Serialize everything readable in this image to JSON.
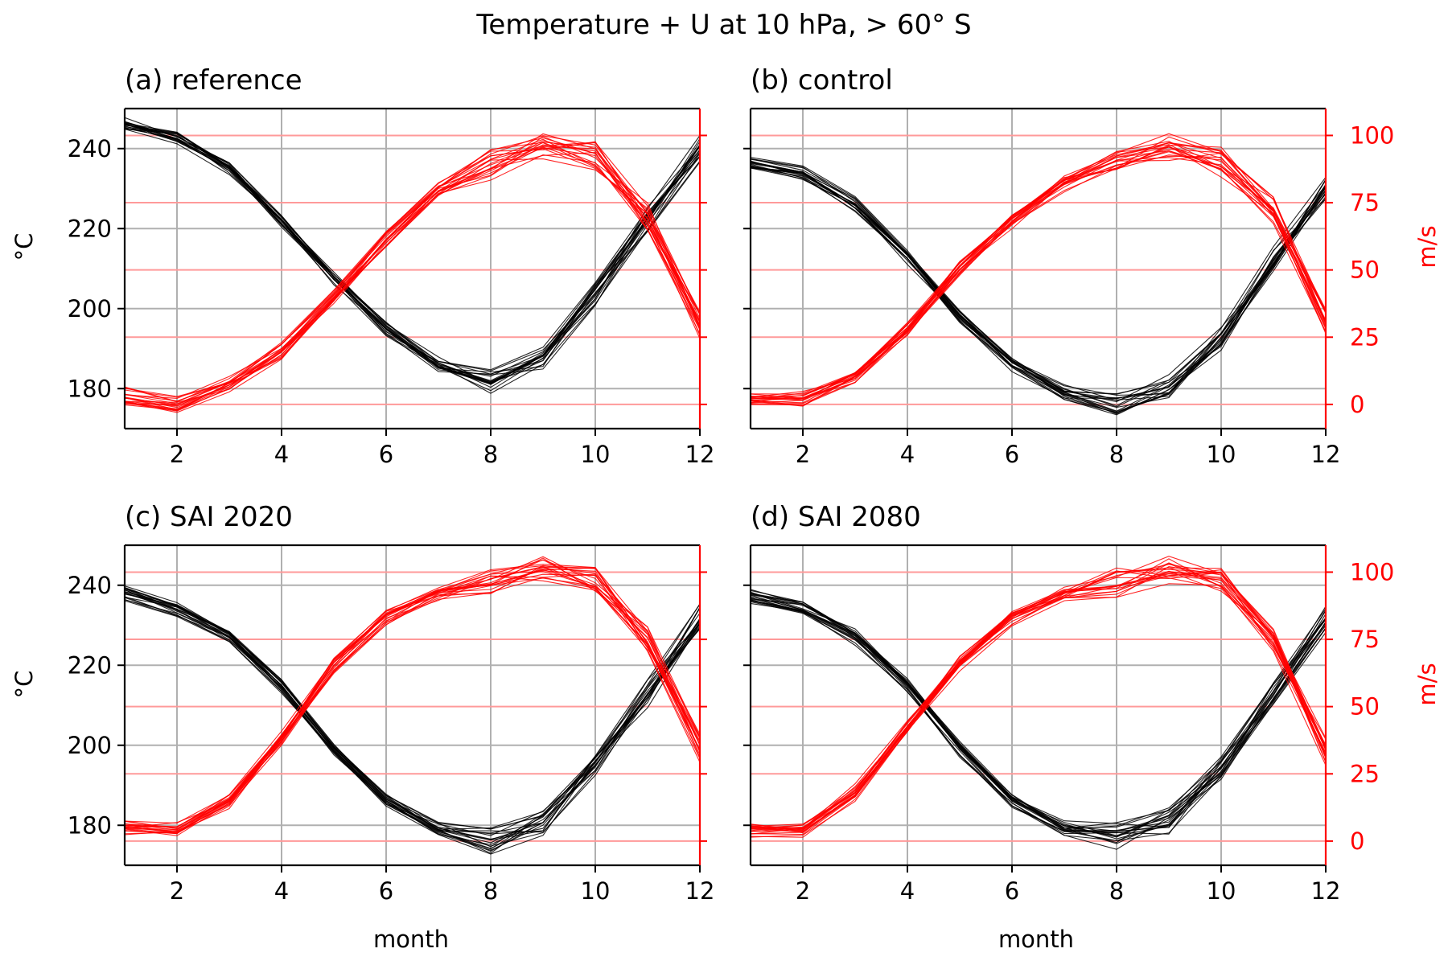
{
  "figure": {
    "title": "Temperature + U at 10 hPa, > 60° S",
    "xlabel": "month",
    "ylabel_left": "°C",
    "ylabel_right": "m/s"
  },
  "colors": {
    "temperature": "#000000",
    "wind": "#ff0000",
    "grid": "#b0b0b0",
    "wind_grid": "#ff9a9a"
  },
  "chart_data": [
    {
      "type": "line",
      "title": "(a) reference",
      "xlabel": "",
      "xlim": [
        1,
        12
      ],
      "xticks": [
        2,
        4,
        6,
        8,
        10,
        12
      ],
      "ylim_left": [
        170,
        250
      ],
      "yticks_left": [
        180,
        200,
        220,
        240
      ],
      "ylim_right": [
        -9,
        110
      ],
      "yticks_right": [
        0,
        25,
        50,
        75,
        100
      ],
      "grid": true,
      "months": [
        1,
        2,
        3,
        4,
        5,
        6,
        7,
        8,
        9,
        10,
        11,
        12
      ],
      "temperature_ensemble_mean": [
        246,
        243,
        235,
        222,
        208,
        195,
        186,
        182,
        188,
        204,
        222,
        240
      ],
      "wind_ensemble_mean": [
        3,
        0,
        8,
        20,
        40,
        62,
        80,
        89,
        96,
        92,
        70,
        30
      ],
      "ensemble_members": 20
    },
    {
      "type": "line",
      "title": "(b) control",
      "xlabel": "",
      "xlim": [
        1,
        12
      ],
      "xticks": [
        2,
        4,
        6,
        8,
        10,
        12
      ],
      "ylim_left": [
        170,
        250
      ],
      "yticks_left": [
        180,
        200,
        220,
        240
      ],
      "ylim_right": [
        -9,
        110
      ],
      "yticks_right": [
        0,
        25,
        50,
        75,
        100
      ],
      "grid": true,
      "months": [
        1,
        2,
        3,
        4,
        5,
        6,
        7,
        8,
        9,
        10,
        11,
        12
      ],
      "temperature_ensemble_mean": [
        236,
        234,
        226,
        213,
        198,
        186,
        179,
        176,
        180,
        192,
        212,
        230
      ],
      "wind_ensemble_mean": [
        2,
        2,
        10,
        28,
        50,
        68,
        82,
        90,
        95,
        90,
        72,
        30
      ],
      "ensemble_members": 20
    },
    {
      "type": "line",
      "title": "(c) SAI 2020",
      "xlabel": "month",
      "xlim": [
        1,
        12
      ],
      "xticks": [
        2,
        4,
        6,
        8,
        10,
        12
      ],
      "ylim_left": [
        170,
        250
      ],
      "yticks_left": [
        180,
        200,
        220,
        240
      ],
      "ylim_right": [
        -9,
        110
      ],
      "yticks_right": [
        0,
        25,
        50,
        75,
        100
      ],
      "grid": true,
      "months": [
        1,
        2,
        3,
        4,
        5,
        6,
        7,
        8,
        9,
        10,
        11,
        12
      ],
      "temperature_ensemble_mean": [
        238,
        234,
        227,
        215,
        199,
        186,
        179,
        176,
        181,
        195,
        213,
        232
      ],
      "wind_ensemble_mean": [
        5,
        4,
        15,
        38,
        65,
        83,
        92,
        97,
        101,
        97,
        75,
        35
      ],
      "ensemble_members": 20
    },
    {
      "type": "line",
      "title": "(d) SAI 2080",
      "xlabel": "month",
      "xlim": [
        1,
        12
      ],
      "xticks": [
        2,
        4,
        6,
        8,
        10,
        12
      ],
      "ylim_left": [
        170,
        250
      ],
      "yticks_left": [
        180,
        200,
        220,
        240
      ],
      "ylim_right": [
        -9,
        110
      ],
      "yticks_right": [
        0,
        25,
        50,
        75,
        100
      ],
      "grid": true,
      "months": [
        1,
        2,
        3,
        4,
        5,
        6,
        7,
        8,
        9,
        10,
        11,
        12
      ],
      "temperature_ensemble_mean": [
        237,
        234,
        227,
        215,
        199,
        186,
        179,
        177,
        181,
        194,
        213,
        231
      ],
      "wind_ensemble_mean": [
        4,
        4,
        18,
        42,
        66,
        83,
        92,
        96,
        101,
        97,
        74,
        33
      ],
      "ensemble_members": 20
    }
  ]
}
